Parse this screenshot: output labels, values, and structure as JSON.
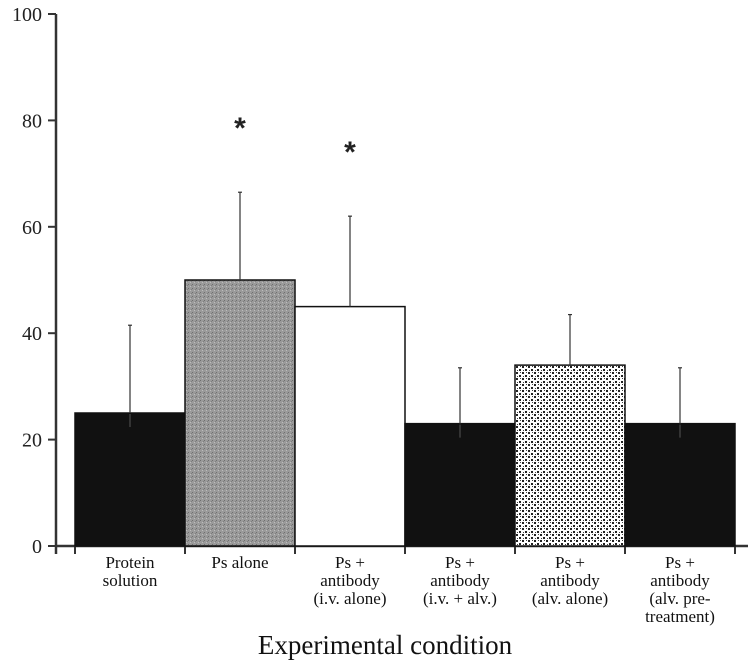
{
  "chart_data": {
    "type": "bar",
    "title": "",
    "xlabel": "Experimental condition",
    "ylabel": "",
    "ylim": [
      0,
      100
    ],
    "yticks": [
      "0",
      "20",
      "40",
      "60",
      "80",
      "100"
    ],
    "categories": [
      [
        "Protein",
        "solution"
      ],
      [
        "Ps alone"
      ],
      [
        "Ps +",
        "antibody",
        "(i.v. alone)"
      ],
      [
        "Ps +",
        "antibody",
        "(i.v. + alv.)"
      ],
      [
        "Ps +",
        "antibody",
        "(alv. alone)"
      ],
      [
        "Ps +",
        "antibody",
        "(alv. pre-",
        "treatment)"
      ]
    ],
    "values": [
      25,
      50,
      45,
      23,
      34,
      23
    ],
    "error_plus": [
      16.5,
      16.5,
      17,
      10.5,
      9.5,
      10.5
    ],
    "fills": [
      "solid-black",
      "gray-stipple",
      "white",
      "solid-black",
      "checker-pattern",
      "solid-black"
    ],
    "significance": [
      "",
      "*",
      "*",
      "",
      "",
      ""
    ],
    "colors": {
      "dark": "#111111",
      "gray": "#9a9a9a",
      "white": "#ffffff",
      "axis": "#333333"
    }
  }
}
